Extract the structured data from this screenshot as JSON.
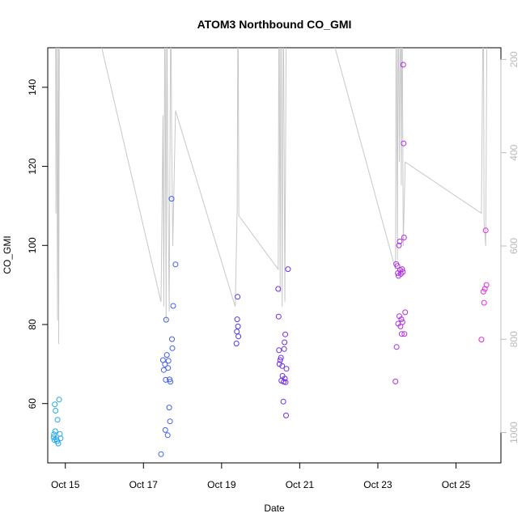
{
  "chart_data": {
    "type": "scatter",
    "title": "ATOM3 Northbound CO_GMI",
    "xlabel": "Date",
    "ylabel": "CO_GMI",
    "x_ticks": [
      "Oct 15",
      "Oct 17",
      "Oct 19",
      "Oct 21",
      "Oct 23",
      "Oct 25"
    ],
    "y_ticks": [
      60,
      80,
      100,
      120,
      140
    ],
    "y2_ticks": [
      200,
      400,
      600,
      800,
      1000
    ],
    "xlim": [
      14.55,
      26.15
    ],
    "ylim": [
      45,
      150
    ],
    "y2lim": [
      1065,
      175
    ],
    "grid": false,
    "colors": {
      "profile_line": "#c8c8c8",
      "axis_secondary": "#b8b8b8",
      "series_start": "#1fa8f0",
      "series_mid": "#5a2ee8",
      "series_end": "#e02ee0"
    },
    "profile_line": [
      [
        14.75,
        20
      ],
      [
        14.76,
        530
      ],
      [
        14.77,
        20
      ],
      [
        14.8,
        760
      ],
      [
        14.82,
        20
      ],
      [
        14.83,
        810
      ],
      [
        14.85,
        20
      ],
      [
        15.5,
        20
      ],
      [
        17.45,
        720
      ],
      [
        17.5,
        320
      ],
      [
        17.52,
        730
      ],
      [
        17.55,
        20
      ],
      [
        17.58,
        760
      ],
      [
        17.6,
        20
      ],
      [
        17.62,
        420
      ],
      [
        17.66,
        740
      ],
      [
        17.7,
        20
      ],
      [
        17.72,
        340
      ],
      [
        17.75,
        600
      ],
      [
        17.82,
        310
      ],
      [
        19.35,
        730
      ],
      [
        19.4,
        520
      ],
      [
        19.42,
        20
      ],
      [
        19.44,
        535
      ],
      [
        20.45,
        650
      ],
      [
        20.47,
        20
      ],
      [
        20.5,
        700
      ],
      [
        20.52,
        20
      ],
      [
        20.55,
        730
      ],
      [
        20.58,
        20
      ],
      [
        20.62,
        720
      ],
      [
        20.66,
        20
      ],
      [
        21.4,
        20
      ],
      [
        23.45,
        650
      ],
      [
        23.47,
        20
      ],
      [
        23.5,
        630
      ],
      [
        23.52,
        20
      ],
      [
        23.55,
        420
      ],
      [
        23.58,
        20
      ],
      [
        23.6,
        470
      ],
      [
        23.62,
        20
      ],
      [
        23.65,
        600
      ],
      [
        23.7,
        420
      ],
      [
        25.65,
        530
      ],
      [
        25.7,
        20
      ],
      [
        25.72,
        550
      ],
      [
        25.76,
        600
      ],
      [
        25.8,
        20
      ]
    ],
    "points": [
      {
        "x": 14.7,
        "y": 51.5
      },
      {
        "x": 14.71,
        "y": 52.2
      },
      {
        "x": 14.72,
        "y": 50.8
      },
      {
        "x": 14.73,
        "y": 59.8
      },
      {
        "x": 14.74,
        "y": 53.0
      },
      {
        "x": 14.75,
        "y": 58.2
      },
      {
        "x": 14.77,
        "y": 51.0
      },
      {
        "x": 14.79,
        "y": 50.5
      },
      {
        "x": 14.8,
        "y": 55.9
      },
      {
        "x": 14.82,
        "y": 49.9
      },
      {
        "x": 14.84,
        "y": 61.0
      },
      {
        "x": 14.86,
        "y": 52.3
      },
      {
        "x": 14.88,
        "y": 51.2
      },
      {
        "x": 17.45,
        "y": 47.2
      },
      {
        "x": 17.5,
        "y": 71.0
      },
      {
        "x": 17.52,
        "y": 68.5
      },
      {
        "x": 17.55,
        "y": 69.9
      },
      {
        "x": 17.56,
        "y": 53.3
      },
      {
        "x": 17.57,
        "y": 66.0
      },
      {
        "x": 17.58,
        "y": 81.2
      },
      {
        "x": 17.6,
        "y": 72.3
      },
      {
        "x": 17.62,
        "y": 52.0
      },
      {
        "x": 17.63,
        "y": 69.0
      },
      {
        "x": 17.64,
        "y": 70.8
      },
      {
        "x": 17.66,
        "y": 59.0
      },
      {
        "x": 17.67,
        "y": 66.1
      },
      {
        "x": 17.68,
        "y": 55.5
      },
      {
        "x": 17.69,
        "y": 65.5
      },
      {
        "x": 17.72,
        "y": 111.8
      },
      {
        "x": 17.73,
        "y": 76.3
      },
      {
        "x": 17.74,
        "y": 74.0
      },
      {
        "x": 17.76,
        "y": 84.7
      },
      {
        "x": 17.82,
        "y": 95.2
      },
      {
        "x": 19.38,
        "y": 75.2
      },
      {
        "x": 19.39,
        "y": 78.2
      },
      {
        "x": 19.4,
        "y": 81.3
      },
      {
        "x": 19.41,
        "y": 87.0
      },
      {
        "x": 19.42,
        "y": 79.5
      },
      {
        "x": 19.43,
        "y": 77.0
      },
      {
        "x": 20.45,
        "y": 89.0
      },
      {
        "x": 20.46,
        "y": 82.0
      },
      {
        "x": 20.47,
        "y": 73.5
      },
      {
        "x": 20.48,
        "y": 70.0
      },
      {
        "x": 20.5,
        "y": 71.0
      },
      {
        "x": 20.52,
        "y": 71.6
      },
      {
        "x": 20.53,
        "y": 65.8
      },
      {
        "x": 20.55,
        "y": 69.5
      },
      {
        "x": 20.56,
        "y": 67.0
      },
      {
        "x": 20.58,
        "y": 60.5
      },
      {
        "x": 20.59,
        "y": 65.5
      },
      {
        "x": 20.6,
        "y": 73.8
      },
      {
        "x": 20.61,
        "y": 75.5
      },
      {
        "x": 20.62,
        "y": 66.3
      },
      {
        "x": 20.63,
        "y": 77.5
      },
      {
        "x": 20.64,
        "y": 65.4
      },
      {
        "x": 20.65,
        "y": 57.0
      },
      {
        "x": 20.66,
        "y": 68.8
      },
      {
        "x": 20.7,
        "y": 94.0
      },
      {
        "x": 23.45,
        "y": 65.6
      },
      {
        "x": 23.47,
        "y": 95.3
      },
      {
        "x": 23.48,
        "y": 74.3
      },
      {
        "x": 23.5,
        "y": 94.8
      },
      {
        "x": 23.51,
        "y": 93.0
      },
      {
        "x": 23.52,
        "y": 80.2
      },
      {
        "x": 23.53,
        "y": 92.3
      },
      {
        "x": 23.54,
        "y": 100.0
      },
      {
        "x": 23.55,
        "y": 82.1
      },
      {
        "x": 23.56,
        "y": 101.0
      },
      {
        "x": 23.57,
        "y": 93.8
      },
      {
        "x": 23.58,
        "y": 79.5
      },
      {
        "x": 23.59,
        "y": 92.8
      },
      {
        "x": 23.6,
        "y": 81.3
      },
      {
        "x": 23.61,
        "y": 77.6
      },
      {
        "x": 23.62,
        "y": 94.0
      },
      {
        "x": 23.63,
        "y": 80.6
      },
      {
        "x": 23.64,
        "y": 93.3
      },
      {
        "x": 23.65,
        "y": 145.7
      },
      {
        "x": 23.66,
        "y": 125.8
      },
      {
        "x": 23.67,
        "y": 102.0
      },
      {
        "x": 23.68,
        "y": 77.6
      },
      {
        "x": 23.7,
        "y": 83.1
      },
      {
        "x": 25.65,
        "y": 76.2
      },
      {
        "x": 25.7,
        "y": 88.3
      },
      {
        "x": 25.72,
        "y": 85.5
      },
      {
        "x": 25.74,
        "y": 89.0
      },
      {
        "x": 25.76,
        "y": 103.8
      },
      {
        "x": 25.78,
        "y": 90.0
      }
    ]
  }
}
